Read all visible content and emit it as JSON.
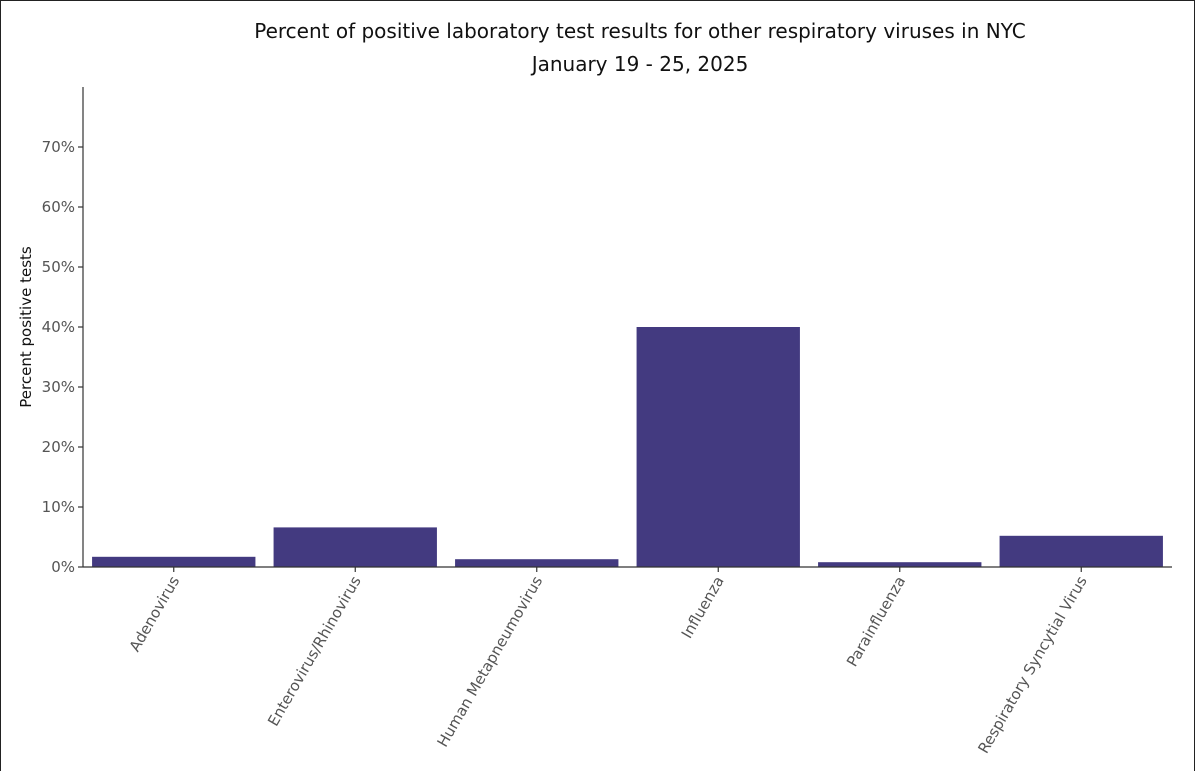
{
  "chart_data": {
    "type": "bar",
    "title": "Percent of positive laboratory test results for other respiratory viruses in NYC",
    "subtitle": "January 19 - 25, 2025",
    "xlabel": "",
    "ylabel": "Percent positive tests",
    "categories": [
      "Adenovirus",
      "Enterovirus/Rhinovirus",
      "Human Metapneumovirus",
      "Influenza",
      "Parainfluenza",
      "Respiratory Syncytial Virus"
    ],
    "values": [
      1.7,
      6.6,
      1.3,
      40.0,
      0.8,
      5.2
    ],
    "ylim": [
      0,
      80
    ],
    "yticks": [
      0,
      10,
      20,
      30,
      40,
      50,
      60,
      70
    ],
    "ytick_labels": [
      "0%",
      "10%",
      "20%",
      "30%",
      "40%",
      "50%",
      "60%",
      "70%"
    ],
    "bar_color": "#433A80",
    "grid": false,
    "legend": "none"
  }
}
